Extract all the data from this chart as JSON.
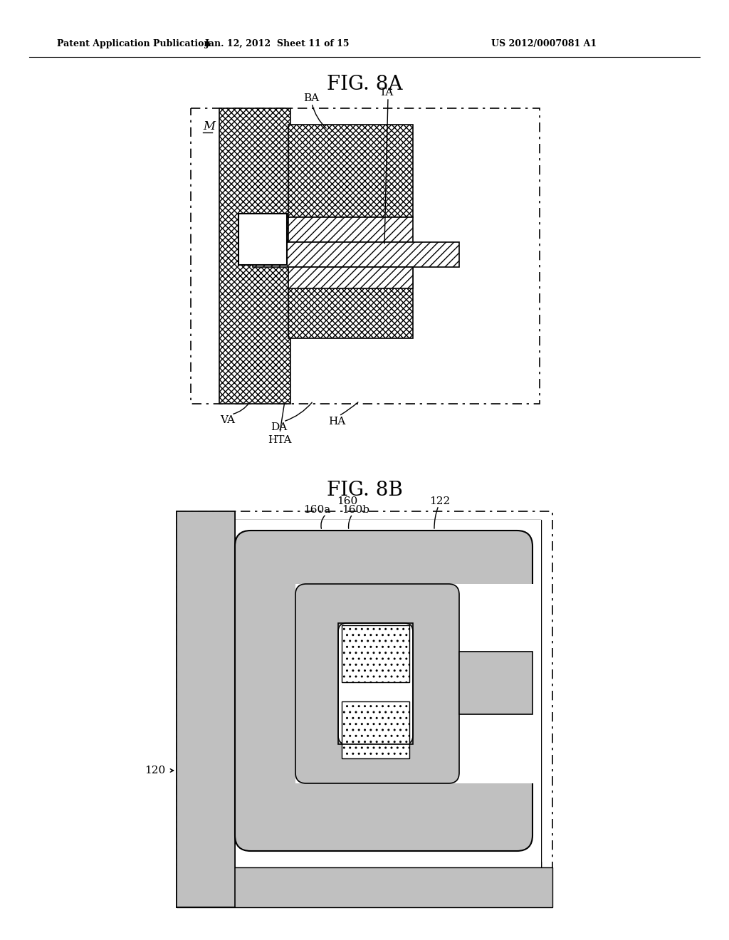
{
  "header_left": "Patent Application Publication",
  "header_mid": "Jan. 12, 2012  Sheet 11 of 15",
  "header_right": "US 2012/0007081 A1",
  "fig8a_title": "FIG. 8A",
  "fig8b_title": "FIG. 8B",
  "bg_color": "#ffffff",
  "line_color": "#000000",
  "label_M": "M",
  "label_BA": "BA",
  "label_TA": "TA",
  "label_VA": "VA",
  "label_DA": "DA",
  "label_HA": "HA",
  "label_HTA": "HTA",
  "label_160": "160",
  "label_160a": "160a",
  "label_160b": "160b",
  "label_122": "122",
  "label_120": "120",
  "gray_light": "#c0c0c0",
  "gray_medium": "#a0a0a0"
}
